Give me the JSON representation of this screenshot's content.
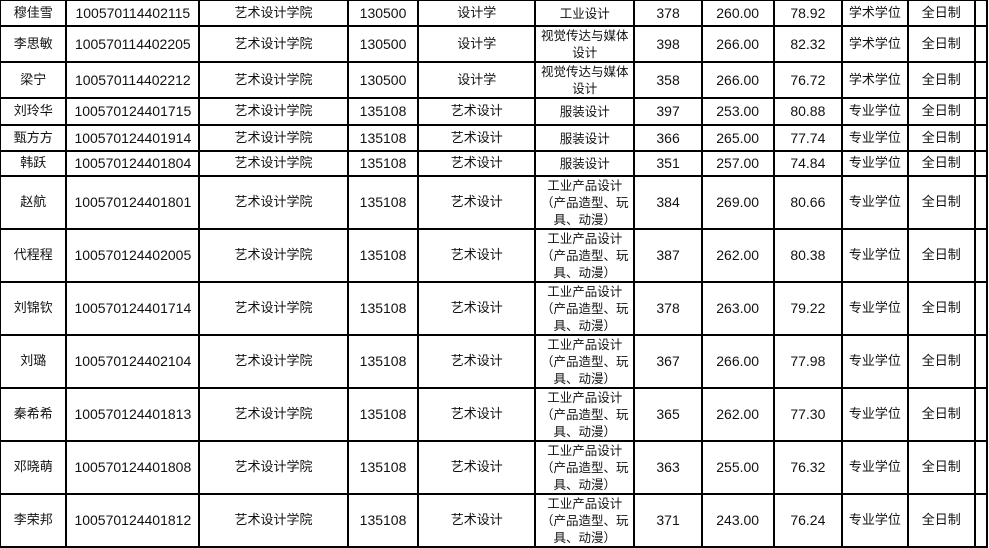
{
  "rows": [
    {
      "name": "穆佳雪",
      "id": "100570114402115",
      "school": "艺术设计学院",
      "code": "130500",
      "discipline": "设计学",
      "major": "工业设计",
      "prelim": "378",
      "composite": "260.00",
      "total": "78.92",
      "degree": "学术学位",
      "mode": "全日制"
    },
    {
      "name": "李思敏",
      "id": "100570114402205",
      "school": "艺术设计学院",
      "code": "130500",
      "discipline": "设计学",
      "major": "视觉传达与媒体设计",
      "prelim": "398",
      "composite": "266.00",
      "total": "82.32",
      "degree": "学术学位",
      "mode": "全日制"
    },
    {
      "name": "梁宁",
      "id": "100570114402212",
      "school": "艺术设计学院",
      "code": "130500",
      "discipline": "设计学",
      "major": "视觉传达与媒体设计",
      "prelim": "358",
      "composite": "266.00",
      "total": "76.72",
      "degree": "学术学位",
      "mode": "全日制"
    },
    {
      "name": "刘玲华",
      "id": "100570124401715",
      "school": "艺术设计学院",
      "code": "135108",
      "discipline": "艺术设计",
      "major": "服装设计",
      "prelim": "397",
      "composite": "253.00",
      "total": "80.88",
      "degree": "专业学位",
      "mode": "全日制"
    },
    {
      "name": "甄方方",
      "id": "100570124401914",
      "school": "艺术设计学院",
      "code": "135108",
      "discipline": "艺术设计",
      "major": "服装设计",
      "prelim": "366",
      "composite": "265.00",
      "total": "77.74",
      "degree": "专业学位",
      "mode": "全日制"
    },
    {
      "name": "韩跃",
      "id": "100570124401804",
      "school": "艺术设计学院",
      "code": "135108",
      "discipline": "艺术设计",
      "major": "服装设计",
      "prelim": "351",
      "composite": "257.00",
      "total": "74.84",
      "degree": "专业学位",
      "mode": "全日制"
    },
    {
      "name": "赵航",
      "id": "100570124401801",
      "school": "艺术设计学院",
      "code": "135108",
      "discipline": "艺术设计",
      "major": "工业产品设计（产品造型、玩具、动漫）",
      "prelim": "384",
      "composite": "269.00",
      "total": "80.66",
      "degree": "专业学位",
      "mode": "全日制"
    },
    {
      "name": "代程程",
      "id": "100570124402005",
      "school": "艺术设计学院",
      "code": "135108",
      "discipline": "艺术设计",
      "major": "工业产品设计（产品造型、玩具、动漫）",
      "prelim": "387",
      "composite": "262.00",
      "total": "80.38",
      "degree": "专业学位",
      "mode": "全日制"
    },
    {
      "name": "刘锦钦",
      "id": "100570124401714",
      "school": "艺术设计学院",
      "code": "135108",
      "discipline": "艺术设计",
      "major": "工业产品设计（产品造型、玩具、动漫）",
      "prelim": "378",
      "composite": "263.00",
      "total": "79.22",
      "degree": "专业学位",
      "mode": "全日制"
    },
    {
      "name": "刘璐",
      "id": "100570124402104",
      "school": "艺术设计学院",
      "code": "135108",
      "discipline": "艺术设计",
      "major": "工业产品设计（产品造型、玩具、动漫）",
      "prelim": "367",
      "composite": "266.00",
      "total": "77.98",
      "degree": "专业学位",
      "mode": "全日制"
    },
    {
      "name": "秦希希",
      "id": "100570124401813",
      "school": "艺术设计学院",
      "code": "135108",
      "discipline": "艺术设计",
      "major": "工业产品设计（产品造型、玩具、动漫）",
      "prelim": "365",
      "composite": "262.00",
      "total": "77.30",
      "degree": "专业学位",
      "mode": "全日制"
    },
    {
      "name": "邓晓萌",
      "id": "100570124401808",
      "school": "艺术设计学院",
      "code": "135108",
      "discipline": "艺术设计",
      "major": "工业产品设计（产品造型、玩具、动漫）",
      "prelim": "363",
      "composite": "255.00",
      "total": "76.32",
      "degree": "专业学位",
      "mode": "全日制"
    },
    {
      "name": "李荣邦",
      "id": "100570124401812",
      "school": "艺术设计学院",
      "code": "135108",
      "discipline": "艺术设计",
      "major": "工业产品设计（产品造型、玩具、动漫）",
      "prelim": "371",
      "composite": "243.00",
      "total": "76.24",
      "degree": "专业学位",
      "mode": "全日制"
    }
  ]
}
